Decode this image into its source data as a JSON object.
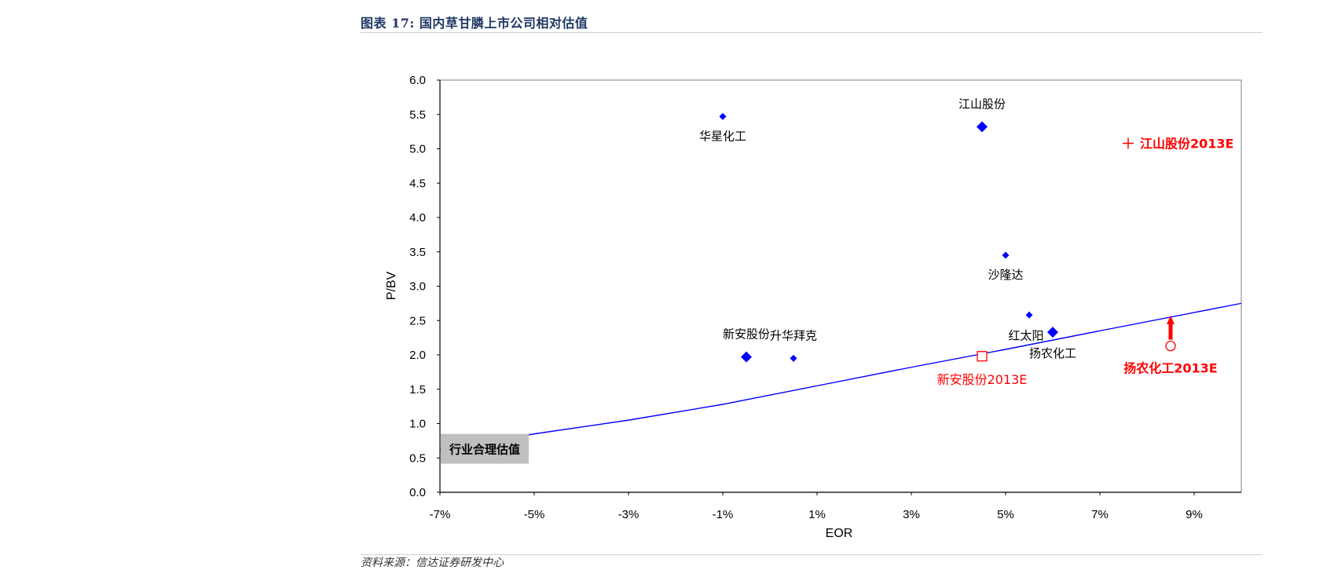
{
  "header": {
    "title": "图表 17:  国内草甘膦上市公司相对估值"
  },
  "footer": {
    "source": "资料来源：信达证券研发中心"
  },
  "chart_data": {
    "type": "scatter",
    "xlabel": "EOR",
    "ylabel": "P/BV",
    "xlim": [
      -0.07,
      0.1
    ],
    "ylim": [
      0,
      6
    ],
    "x_ticks": [
      "-7%",
      "-5%",
      "-3%",
      "-1%",
      "1%",
      "3%",
      "5%",
      "7%",
      "9%"
    ],
    "y_ticks": [
      "0.0",
      "0.5",
      "1.0",
      "1.5",
      "2.0",
      "2.5",
      "3.0",
      "3.5",
      "4.0",
      "4.5",
      "5.0",
      "5.5",
      "6.0"
    ],
    "grid": false,
    "companies": [
      {
        "name": "华星化工",
        "x": -0.01,
        "y": 5.47,
        "size": "small"
      },
      {
        "name": "江山股份",
        "x": 0.045,
        "y": 5.32,
        "size": "large"
      },
      {
        "name": "沙隆达",
        "x": 0.05,
        "y": 3.45,
        "size": "small"
      },
      {
        "name": "红太阳",
        "x": 0.055,
        "y": 2.58,
        "size": "small"
      },
      {
        "name": "扬农化工",
        "x": 0.06,
        "y": 2.33,
        "size": "large"
      },
      {
        "name": "新安股份",
        "x": -0.005,
        "y": 1.97,
        "size": "large"
      },
      {
        "name": "升华拜克",
        "x": 0.005,
        "y": 1.95,
        "size": "small"
      }
    ],
    "estimates_2013E": [
      {
        "name": "江山股份2013E",
        "x": 0.076,
        "y": 5.08,
        "marker": "plus"
      },
      {
        "name": "新安股份2013E",
        "x": 0.045,
        "y": 1.98,
        "marker": "square"
      },
      {
        "name": "扬农化工2013E",
        "x": 0.085,
        "y": 2.13,
        "marker": "circle"
      }
    ],
    "fair_value_line": {
      "name": "行业合理估值",
      "x": [
        -0.07,
        -0.05,
        -0.03,
        -0.01,
        0.01,
        0.03,
        0.05,
        0.07,
        0.1
      ],
      "y": [
        0.62,
        0.85,
        1.05,
        1.28,
        1.55,
        1.82,
        2.08,
        2.35,
        2.75
      ]
    },
    "arrow": {
      "from": [
        0.085,
        2.13
      ],
      "to": [
        0.085,
        2.55
      ],
      "color": "#ff0000"
    },
    "colors": {
      "companies": "#0000ff",
      "estimates": "#ff0000",
      "line": "#0000ff",
      "label_box": "#bfbfbf"
    }
  }
}
